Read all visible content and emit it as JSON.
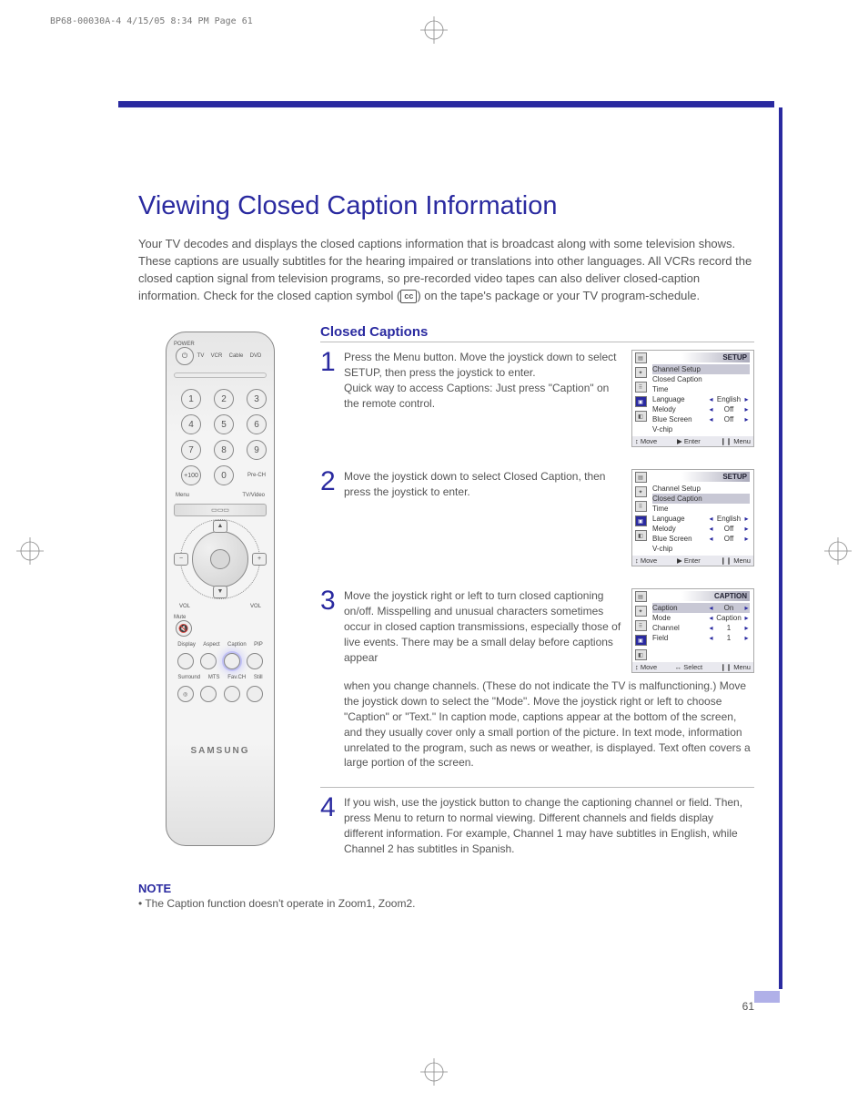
{
  "print_header": "BP68-00030A-4  4/15/05  8:34 PM  Page 61",
  "colors": {
    "accent": "#2a2aa0",
    "body_text": "#555555",
    "page_bg": "#ffffff"
  },
  "title": "Viewing Closed Caption Information",
  "intro": "Your TV decodes and displays the closed captions information that is broadcast along with some television shows. These captions are usually subtitles for the hearing impaired or translations into other languages. All VCRs record the closed caption signal from television programs, so pre-recorded video tapes can also deliver closed-caption information. Check for the closed caption symbol ( CC ) on the tape's package or your TV program-schedule.",
  "section_title": "Closed Captions",
  "steps": [
    {
      "num": "1",
      "text": "Press the Menu button. Move the joystick down to select SETUP, then press the joystick to enter.\nQuick way to access Captions: Just press \"Caption\" on the remote control."
    },
    {
      "num": "2",
      "text": "Move the joystick down to select Closed Caption, then press the joystick to enter."
    },
    {
      "num": "3",
      "text": "Move the joystick right or left to turn closed captioning on/off. Misspelling and unusual characters sometimes occur in closed caption transmissions, especially those of live events. There may be a small delay before captions appear when you change channels. (These do not indicate the TV is malfunctioning.) Move the joystick down to select the \"Mode\". Move the joystick right or left to choose \"Caption\" or \"Text.\" In caption mode, captions appear at the bottom of the screen, and they usually cover only a small portion of the picture. In text mode, information unrelated to the program, such as news or weather, is displayed. Text often covers a large portion of the screen."
    },
    {
      "num": "4",
      "text": "If you wish, use the joystick button to change the captioning channel or field. Then, press Menu to return to normal viewing. Different channels and fields display different information. For example, Channel 1 may have subtitles in English, while Channel 2 has subtitles in Spanish."
    }
  ],
  "osd": {
    "icons": [
      "▤",
      "✦",
      "⠿",
      "▣",
      "◧"
    ],
    "setup": {
      "title": "SETUP",
      "rows": [
        {
          "label": "Channel Setup",
          "val": "",
          "arrows": false
        },
        {
          "label": "Closed Caption",
          "val": "",
          "arrows": false
        },
        {
          "label": "Time",
          "val": "",
          "arrows": false
        },
        {
          "label": "Language",
          "val": "English",
          "arrows": true
        },
        {
          "label": "Melody",
          "val": "Off",
          "arrows": true
        },
        {
          "label": "Blue Screen",
          "val": "Off",
          "arrows": true
        },
        {
          "label": "V-chip",
          "val": "",
          "arrows": false
        }
      ],
      "footer": [
        "↕ Move",
        "▶ Enter",
        "❙❙ Menu"
      ],
      "highlight_1": 0,
      "highlight_2": 1
    },
    "caption": {
      "title": "CAPTION",
      "rows": [
        {
          "label": "Caption",
          "val": "On",
          "arrows": true
        },
        {
          "label": "Mode",
          "val": "Caption",
          "arrows": true
        },
        {
          "label": "Channel",
          "val": "1",
          "arrows": true
        },
        {
          "label": "Field",
          "val": "1",
          "arrows": true
        }
      ],
      "footer": [
        "↕ Move",
        "↔ Select",
        "❙❙ Menu"
      ],
      "highlight": 0
    }
  },
  "note_title": "NOTE",
  "note_text": "•  The Caption function doesn't operate in Zoom1, Zoom2.",
  "page_num": "61",
  "remote": {
    "power_label": "POWER",
    "modes": [
      "TV",
      "VCR",
      "Cable",
      "DVD"
    ],
    "numbers": [
      "1",
      "2",
      "3",
      "4",
      "5",
      "6",
      "7",
      "8",
      "9",
      "+100",
      "0"
    ],
    "side_label": "MODE",
    "pre_ch": "Pre-CH",
    "menu": "Menu",
    "tv_video": "TV/Video",
    "vol": "VOL",
    "mute": "Mute",
    "row4_labels": [
      "Display",
      "Aspect",
      "Caption",
      "PIP"
    ],
    "row5_labels": [
      "Surround",
      "MTS",
      "Fav.CH",
      "Still"
    ],
    "brand": "SAMSUNG"
  }
}
